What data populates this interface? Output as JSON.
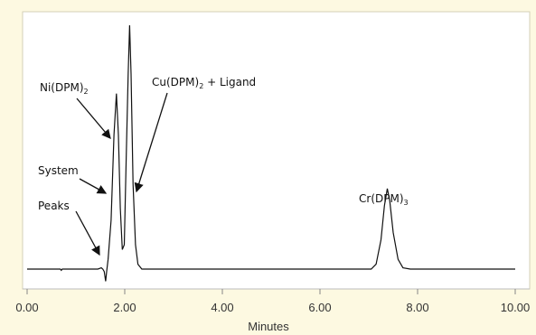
{
  "chart_data": {
    "type": "line",
    "xlabel": "Minutes",
    "ylabel": "",
    "xlim": [
      0,
      10
    ],
    "ylim": [
      0,
      1
    ],
    "x_ticks": [
      "0.00",
      "2.00",
      "4.00",
      "6.00",
      "8.00",
      "10.00"
    ],
    "grid": false,
    "series": [
      {
        "points": [
          [
            0.0,
            0.0
          ],
          [
            0.68,
            0.0
          ],
          [
            0.7,
            -0.005
          ],
          [
            0.72,
            0.0
          ],
          [
            1.45,
            0.0
          ],
          [
            1.52,
            0.005
          ],
          [
            1.55,
            0.0
          ],
          [
            1.58,
            -0.01
          ],
          [
            1.61,
            -0.05
          ],
          [
            1.63,
            -0.01
          ],
          [
            1.66,
            0.04
          ],
          [
            1.72,
            0.2
          ],
          [
            1.78,
            0.55
          ],
          [
            1.83,
            0.72
          ],
          [
            1.87,
            0.55
          ],
          [
            1.91,
            0.25
          ],
          [
            1.95,
            0.08
          ],
          [
            1.99,
            0.1
          ],
          [
            2.03,
            0.45
          ],
          [
            2.07,
            0.8
          ],
          [
            2.1,
            1.0
          ],
          [
            2.13,
            0.8
          ],
          [
            2.17,
            0.35
          ],
          [
            2.22,
            0.1
          ],
          [
            2.27,
            0.02
          ],
          [
            2.35,
            0.0
          ],
          [
            7.05,
            0.0
          ],
          [
            7.15,
            0.02
          ],
          [
            7.25,
            0.12
          ],
          [
            7.32,
            0.26
          ],
          [
            7.38,
            0.33
          ],
          [
            7.43,
            0.28
          ],
          [
            7.5,
            0.15
          ],
          [
            7.6,
            0.04
          ],
          [
            7.7,
            0.005
          ],
          [
            7.85,
            0.0
          ],
          [
            10.0,
            0.0
          ]
        ]
      }
    ],
    "annotations": [
      {
        "id": "ni",
        "label_main": "Ni(DPM)",
        "label_sub": "2"
      },
      {
        "id": "cu",
        "label_main": "Cu(DPM)",
        "label_sub": "2",
        "label_tail": " + Ligand"
      },
      {
        "id": "system",
        "label_main": "System"
      },
      {
        "id": "peaks",
        "label_main": "Peaks"
      },
      {
        "id": "cr",
        "label_main": "Cr(DPM)",
        "label_sub": "3"
      }
    ]
  }
}
